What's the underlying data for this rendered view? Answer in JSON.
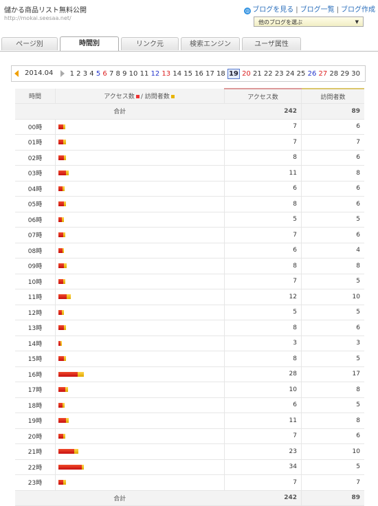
{
  "site": {
    "title": "儲かる商品リスト無料公開",
    "url": "http://mokai.seesaa.net/"
  },
  "header_links": {
    "view_blog": "ブログを見る",
    "blog_list": "ブログ一覧",
    "create_blog": "ブログ作成",
    "select_label": "他のブログを選ぶ"
  },
  "tabs": [
    {
      "label": "ページ別"
    },
    {
      "label": "時間別"
    },
    {
      "label": "リンク元"
    },
    {
      "label": "検索エンジン"
    },
    {
      "label": "ユーザ属性"
    }
  ],
  "active_tab": 1,
  "month": "2014.04",
  "days": [
    "1",
    "2",
    "3",
    "4",
    "5",
    "6",
    "7",
    "8",
    "9",
    "10",
    "11",
    "12",
    "13",
    "14",
    "15",
    "16",
    "17",
    "18",
    "19",
    "20",
    "21",
    "22",
    "23",
    "24",
    "25",
    "26",
    "27",
    "28",
    "29",
    "30"
  ],
  "saturdays": [
    "5",
    "12",
    "26"
  ],
  "sundays": [
    "6",
    "13",
    "20",
    "27"
  ],
  "selected_day": "19",
  "table": {
    "col_hour": "時間",
    "col_bar_access": "アクセス数",
    "col_bar_sep": "/",
    "col_bar_visitor": "訪問者数",
    "col_access": "アクセス数",
    "col_visitor": "訪問者数",
    "total_label": "合計",
    "total_access": "242",
    "total_visitor": "89",
    "rows": [
      {
        "hour": "00時",
        "access": "7",
        "visitor": "6"
      },
      {
        "hour": "01時",
        "access": "7",
        "visitor": "7"
      },
      {
        "hour": "02時",
        "access": "8",
        "visitor": "6"
      },
      {
        "hour": "03時",
        "access": "11",
        "visitor": "8"
      },
      {
        "hour": "04時",
        "access": "6",
        "visitor": "6"
      },
      {
        "hour": "05時",
        "access": "8",
        "visitor": "6"
      },
      {
        "hour": "06時",
        "access": "5",
        "visitor": "5"
      },
      {
        "hour": "07時",
        "access": "7",
        "visitor": "6"
      },
      {
        "hour": "08時",
        "access": "6",
        "visitor": "4"
      },
      {
        "hour": "09時",
        "access": "8",
        "visitor": "8"
      },
      {
        "hour": "10時",
        "access": "7",
        "visitor": "5"
      },
      {
        "hour": "11時",
        "access": "12",
        "visitor": "10"
      },
      {
        "hour": "12時",
        "access": "5",
        "visitor": "5"
      },
      {
        "hour": "13時",
        "access": "8",
        "visitor": "6"
      },
      {
        "hour": "14時",
        "access": "3",
        "visitor": "3"
      },
      {
        "hour": "15時",
        "access": "8",
        "visitor": "5"
      },
      {
        "hour": "16時",
        "access": "28",
        "visitor": "17"
      },
      {
        "hour": "17時",
        "access": "10",
        "visitor": "8"
      },
      {
        "hour": "18時",
        "access": "6",
        "visitor": "5"
      },
      {
        "hour": "19時",
        "access": "11",
        "visitor": "8"
      },
      {
        "hour": "20時",
        "access": "7",
        "visitor": "6"
      },
      {
        "hour": "21時",
        "access": "23",
        "visitor": "10"
      },
      {
        "hour": "22時",
        "access": "34",
        "visitor": "5"
      },
      {
        "hour": "23時",
        "access": "7",
        "visitor": "7"
      }
    ]
  },
  "colors": {
    "access_bar": "#d82020",
    "visitor_bar": "#f0c020"
  }
}
